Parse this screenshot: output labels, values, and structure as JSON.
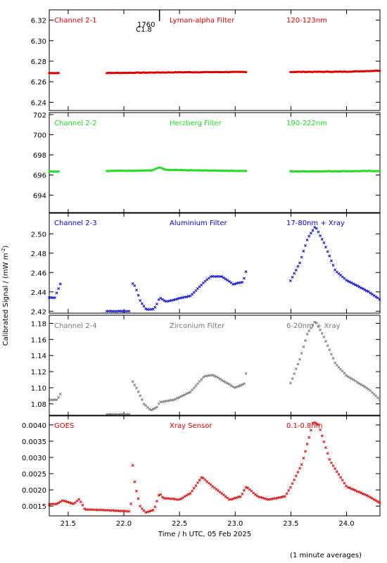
{
  "x_axis_label": "Time / h UTC, 05 Feb 2025",
  "y_axis_label_main": "Calibrated Signal / (mW m",
  "y_axis_label_sup": "-2",
  "y_axis_label_end": ")",
  "footnote": "(1 minute averages)",
  "event_marker": {
    "x": 22.32,
    "label_top": "1760",
    "label_bottom": "C1.8"
  },
  "chart_data": [
    {
      "type": "scatter",
      "channel_label": "Channel 2-1",
      "filter_label": "Lyman-alpha Filter",
      "band_label": "120-123nm",
      "color": "#dd0000",
      "xlim": [
        21.33,
        24.3
      ],
      "ylim": [
        6.232,
        6.33
      ],
      "yticks": [
        6.24,
        6.26,
        6.28,
        6.3,
        6.32
      ],
      "ytick_labels": [
        "6.24",
        "6.26",
        "6.28",
        "6.30",
        "6.32"
      ],
      "knots": [
        [
          21.33,
          6.2685
        ],
        [
          21.42,
          6.2685
        ],
        [
          21.83,
          6.2685
        ],
        [
          22.5,
          6.2692
        ],
        [
          23.11,
          6.2695
        ],
        [
          23.48,
          6.2695
        ],
        [
          24.0,
          6.2698
        ],
        [
          24.3,
          6.2708
        ]
      ],
      "gaps": [
        [
          21.42,
          21.83
        ],
        [
          23.11,
          23.48
        ]
      ]
    },
    {
      "type": "scatter",
      "channel_label": "Channel 2-2",
      "filter_label": "Herzberg Filter",
      "band_label": "190-222nm",
      "color": "#22dd22",
      "xlim": [
        21.33,
        24.3
      ],
      "ylim": [
        692.2,
        702.2
      ],
      "yticks": [
        694,
        696,
        698,
        700,
        702
      ],
      "ytick_labels": [
        "694",
        "696",
        "698",
        "700",
        "702"
      ],
      "knots": [
        [
          21.33,
          696.35
        ],
        [
          21.42,
          696.35
        ],
        [
          21.83,
          696.4
        ],
        [
          22.25,
          696.45
        ],
        [
          22.32,
          696.75
        ],
        [
          22.38,
          696.5
        ],
        [
          22.7,
          696.45
        ],
        [
          23.11,
          696.4
        ],
        [
          23.48,
          696.35
        ],
        [
          24.3,
          696.4
        ]
      ],
      "gaps": [
        [
          21.42,
          21.83
        ],
        [
          23.11,
          23.48
        ]
      ]
    },
    {
      "type": "scatter",
      "channel_label": "Channel 2-3",
      "filter_label": "Aluminium Filter",
      "band_label": "17-80nm + Xray",
      "color": "#0000dd",
      "xlim": [
        21.33,
        24.3
      ],
      "ylim": [
        2.418,
        2.522
      ],
      "yticks": [
        2.42,
        2.44,
        2.46,
        2.48,
        2.5
      ],
      "ytick_labels": [
        "2.42",
        "2.44",
        "2.46",
        "2.48",
        "2.50"
      ],
      "knots": [
        [
          21.33,
          2.434
        ],
        [
          21.38,
          2.434
        ],
        [
          21.4,
          2.44
        ],
        [
          21.43,
          2.448
        ],
        [
          21.83,
          2.42
        ],
        [
          22.05,
          2.42
        ],
        [
          22.07,
          2.45
        ],
        [
          22.1,
          2.446
        ],
        [
          22.15,
          2.43
        ],
        [
          22.2,
          2.422
        ],
        [
          22.27,
          2.422
        ],
        [
          22.3,
          2.428
        ],
        [
          22.32,
          2.434
        ],
        [
          22.38,
          2.43
        ],
        [
          22.6,
          2.436
        ],
        [
          22.72,
          2.45
        ],
        [
          22.78,
          2.456
        ],
        [
          22.88,
          2.456
        ],
        [
          22.98,
          2.448
        ],
        [
          23.07,
          2.45
        ],
        [
          23.11,
          2.466
        ],
        [
          23.48,
          2.448
        ],
        [
          23.58,
          2.47
        ],
        [
          23.65,
          2.495
        ],
        [
          23.72,
          2.508
        ],
        [
          23.8,
          2.49
        ],
        [
          23.9,
          2.462
        ],
        [
          24.0,
          2.452
        ],
        [
          24.2,
          2.44
        ],
        [
          24.3,
          2.432
        ]
      ],
      "gaps": [
        [
          21.44,
          21.83
        ],
        [
          22.06,
          22.07
        ],
        [
          23.11,
          23.48
        ]
      ]
    },
    {
      "type": "scatter",
      "channel_label": "Channel 2-4",
      "filter_label": "Zirconium Filter",
      "band_label": "6-20nm + Xray",
      "color": "#777777",
      "xlim": [
        21.33,
        24.3
      ],
      "ylim": [
        1.065,
        1.19
      ],
      "yticks": [
        1.08,
        1.1,
        1.12,
        1.14,
        1.16,
        1.18
      ],
      "ytick_labels": [
        "1.08",
        "1.10",
        "1.12",
        "1.14",
        "1.16",
        "1.18"
      ],
      "knots": [
        [
          21.33,
          1.085
        ],
        [
          21.4,
          1.085
        ],
        [
          21.43,
          1.092
        ],
        [
          21.83,
          1.067
        ],
        [
          22.05,
          1.067
        ],
        [
          22.07,
          1.11
        ],
        [
          22.12,
          1.098
        ],
        [
          22.18,
          1.08
        ],
        [
          22.24,
          1.072
        ],
        [
          22.3,
          1.076
        ],
        [
          22.32,
          1.082
        ],
        [
          22.45,
          1.085
        ],
        [
          22.6,
          1.095
        ],
        [
          22.72,
          1.114
        ],
        [
          22.8,
          1.116
        ],
        [
          22.9,
          1.108
        ],
        [
          23.0,
          1.1
        ],
        [
          23.08,
          1.105
        ],
        [
          23.11,
          1.128
        ],
        [
          23.48,
          1.1
        ],
        [
          23.58,
          1.135
        ],
        [
          23.65,
          1.168
        ],
        [
          23.72,
          1.183
        ],
        [
          23.8,
          1.162
        ],
        [
          23.9,
          1.13
        ],
        [
          24.0,
          1.115
        ],
        [
          24.2,
          1.098
        ],
        [
          24.3,
          1.085
        ]
      ],
      "gaps": [
        [
          21.44,
          21.83
        ],
        [
          22.06,
          22.07
        ],
        [
          23.11,
          23.48
        ]
      ]
    },
    {
      "type": "scatter",
      "channel_label": "GOES",
      "filter_label": "Xray Sensor",
      "band_label": "0.1-0.8nm",
      "color": "#dd0000",
      "xlim": [
        21.33,
        24.3
      ],
      "ylim": [
        0.0012,
        0.0043
      ],
      "yticks": [
        0.0015,
        0.002,
        0.0025,
        0.003,
        0.0035,
        0.004
      ],
      "ytick_labels": [
        "0.0015",
        "0.0020",
        "0.0025",
        "0.0030",
        "0.0035",
        "0.0040"
      ],
      "knots": [
        [
          21.33,
          0.00155
        ],
        [
          21.4,
          0.00157
        ],
        [
          21.45,
          0.00168
        ],
        [
          21.55,
          0.00157
        ],
        [
          21.6,
          0.00172
        ],
        [
          21.65,
          0.0014
        ],
        [
          22.0,
          0.00135
        ],
        [
          22.06,
          0.00133
        ],
        [
          22.08,
          0.00275
        ],
        [
          22.1,
          0.00215
        ],
        [
          22.15,
          0.00145
        ],
        [
          22.2,
          0.0013
        ],
        [
          22.27,
          0.00138
        ],
        [
          22.32,
          0.0019
        ],
        [
          22.35,
          0.00175
        ],
        [
          22.5,
          0.0017
        ],
        [
          22.6,
          0.0019
        ],
        [
          22.7,
          0.0024
        ],
        [
          22.8,
          0.0021
        ],
        [
          22.95,
          0.0017
        ],
        [
          23.05,
          0.0018
        ],
        [
          23.1,
          0.0021
        ],
        [
          23.2,
          0.0018
        ],
        [
          23.3,
          0.0017
        ],
        [
          23.45,
          0.0018
        ],
        [
          23.5,
          0.0021
        ],
        [
          23.6,
          0.0028
        ],
        [
          23.7,
          0.0041
        ],
        [
          23.75,
          0.004
        ],
        [
          23.85,
          0.0029
        ],
        [
          24.0,
          0.0021
        ],
        [
          24.2,
          0.0018
        ],
        [
          24.3,
          0.0016
        ]
      ],
      "gaps": []
    }
  ],
  "x_ticks": [
    21.5,
    22.0,
    22.5,
    23.0,
    23.5,
    24.0
  ],
  "x_tick_labels": [
    "21.5",
    "22.0",
    "22.5",
    "23.0",
    "23.5",
    "24.0"
  ]
}
